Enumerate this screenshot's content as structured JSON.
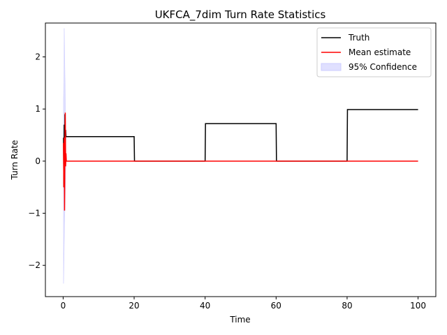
{
  "chart_data": {
    "type": "line",
    "title": "UKFCA_7dim Turn Rate Statistics",
    "xlabel": "Time",
    "ylabel": "Turn Rate",
    "xlim": [
      -5,
      105
    ],
    "ylim": [
      -2.6,
      2.65
    ],
    "xticks": [
      0,
      20,
      40,
      60,
      80,
      100
    ],
    "yticks": [
      -2,
      -1,
      0,
      1,
      2
    ],
    "grid": false,
    "legend_position": "top-right",
    "legend": [
      {
        "label": "Truth",
        "kind": "line",
        "color": "#000000"
      },
      {
        "label": "Mean estimate",
        "kind": "line",
        "color": "#ff0000"
      },
      {
        "label": "95% Confidence",
        "kind": "patch",
        "color": "#ccccff"
      }
    ],
    "series": [
      {
        "name": "Truth",
        "color": "#000000",
        "x": [
          0.1,
          0.2,
          0.3,
          0.4,
          0.5,
          0.6,
          0.7,
          0.8,
          0.9,
          1.0,
          20.0,
          20.1,
          40.0,
          40.1,
          60.0,
          60.1,
          80.0,
          80.1,
          100.0
        ],
        "y": [
          0.45,
          -0.5,
          0.7,
          -0.35,
          0.9,
          0.2,
          0.6,
          0.47,
          0.47,
          0.47,
          0.47,
          0.0,
          0.0,
          0.72,
          0.72,
          0.0,
          0.0,
          0.99,
          0.99
        ]
      },
      {
        "name": "Mean estimate",
        "color": "#ff0000",
        "x": [
          0.1,
          0.2,
          0.3,
          0.4,
          0.5,
          0.6,
          0.7,
          0.8,
          0.9,
          1.0,
          100.0
        ],
        "y": [
          0.35,
          -0.5,
          0.45,
          -0.95,
          0.2,
          0.93,
          -0.1,
          0.15,
          0.0,
          0.0,
          0.0
        ]
      }
    ],
    "confidence_band": {
      "name": "95% Confidence",
      "color": "#ccccff",
      "x": [
        0.1,
        0.2,
        0.3,
        0.4,
        0.5,
        0.6,
        0.7,
        0.8,
        0.9,
        1.0,
        100.0
      ],
      "lower": [
        -2.35,
        -2.1,
        -1.6,
        -1.2,
        -0.9,
        -0.6,
        -0.2,
        -0.02,
        -0.01,
        0.0,
        0.0
      ],
      "upper": [
        1.2,
        1.5,
        2.55,
        2.2,
        1.7,
        1.3,
        0.4,
        0.05,
        0.02,
        0.0,
        0.0
      ]
    }
  }
}
